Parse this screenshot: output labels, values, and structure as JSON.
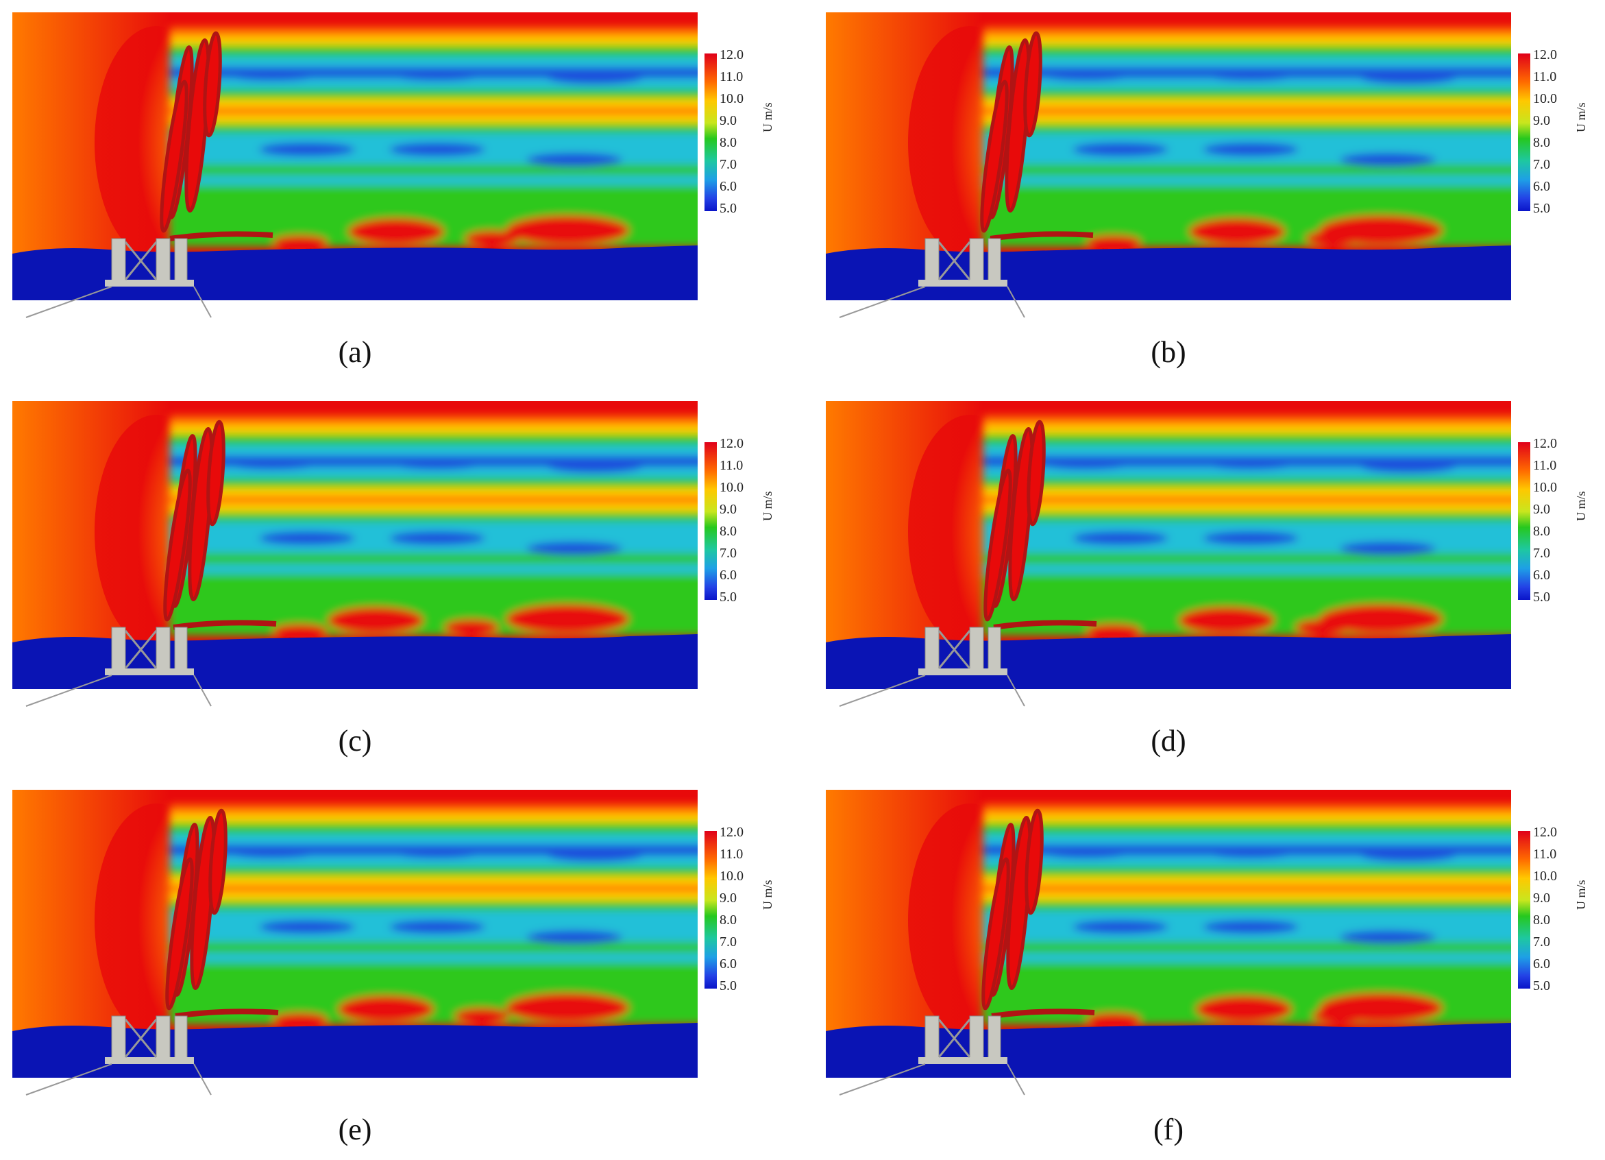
{
  "colorbar": {
    "ticks": [
      "12.0",
      "11.0",
      "10.0",
      "9.0",
      "8.0",
      "7.0",
      "6.0",
      "5.0"
    ],
    "unit": "U m/s",
    "min": 5.0,
    "max": 12.0
  },
  "panels": [
    {
      "label": "(a)"
    },
    {
      "label": "(b)"
    },
    {
      "label": "(c)"
    },
    {
      "label": "(d)"
    },
    {
      "label": "(e)"
    },
    {
      "label": "(f)"
    }
  ],
  "colors": {
    "high": "#e80a0a",
    "orange": "#ff7a00",
    "yellow": "#ffd200",
    "green": "#2dc81e",
    "cyan": "#22c0d8",
    "blue": "#1e50dc",
    "sea": "#0a14b4",
    "platform": "#c8c8c0",
    "rotor": "#b01414"
  }
}
